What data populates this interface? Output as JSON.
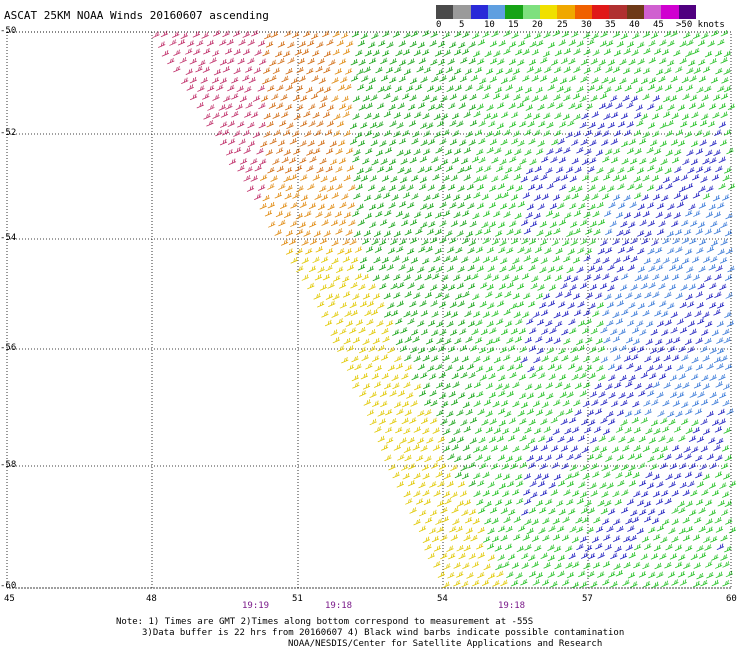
{
  "header": {
    "title": "ASCAT 25KM NOAA Winds 20160607 ascending"
  },
  "legend": {
    "colors": [
      "#4a4a4a",
      "#9a9a9a",
      "#2a2ad8",
      "#5f9fe0",
      "#16a316",
      "#7ee07e",
      "#f0e000",
      "#f0a800",
      "#f06000",
      "#e01818",
      "#b03030",
      "#6e3a18",
      "#d060d0",
      "#d000d0",
      "#500080"
    ],
    "labels": [
      "0",
      "5",
      "10",
      "15",
      "20",
      "25",
      "30",
      "35",
      "40",
      "45",
      ">50 knots"
    ]
  },
  "map": {
    "lat_labels": [
      "-50",
      "-52",
      "-54",
      "-56",
      "-58",
      "-60"
    ],
    "lon_labels": [
      "45",
      "48",
      "51",
      "54",
      "57",
      "60"
    ],
    "time_labels": [
      "19:19",
      "19:18",
      "19:18"
    ]
  },
  "footer": {
    "note1": "Note: 1) Times are GMT 2)Times along bottom correspond to measurement at -55S",
    "note2": "3)Data buffer is 22 hrs from 20160607 4) Black wind barbs indicate possible contamination",
    "note3": "NOAA/NESDIS/Center for Satellite Applications and Research"
  }
}
